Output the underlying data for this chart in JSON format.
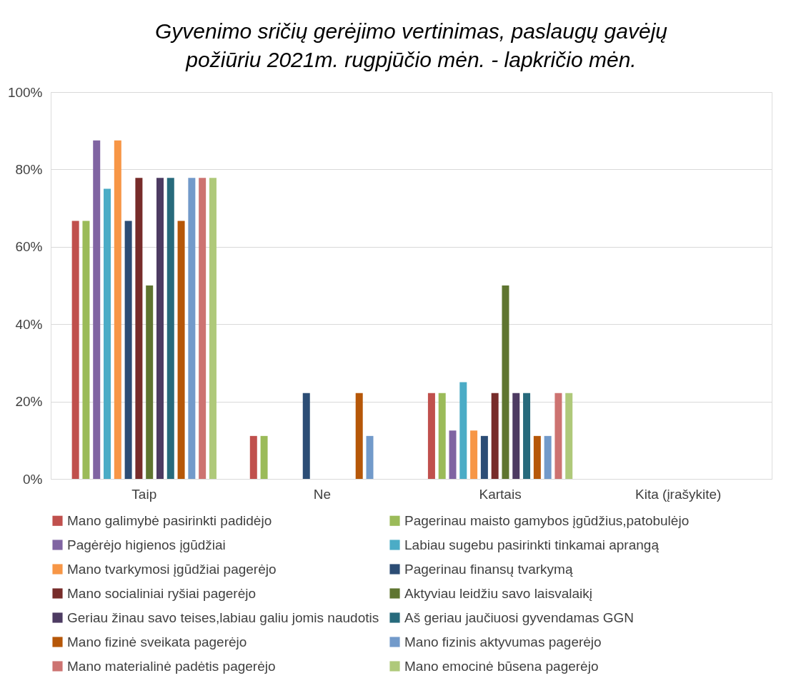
{
  "chart_data": {
    "type": "bar",
    "title": "Gyvenimo sričių gerėjimo vertinimas, paslaugų gavėjų požiūriu 2021m. rugpjūčio mėn. - lapkričio mėn.",
    "categories": [
      "Taip",
      "Ne",
      "Kartais",
      "Kita (įrašykite)"
    ],
    "series": [
      {
        "name": "Mano galimybė pasirinkti padidėjo",
        "color": "#c0504d",
        "values": [
          66.7,
          11.1,
          22.2,
          0
        ]
      },
      {
        "name": "Pagerinau maisto gamybos įgūdžius,patobulėjo",
        "color": "#9bbb59",
        "values": [
          66.7,
          11.1,
          22.2,
          0
        ]
      },
      {
        "name": "Pagėrėjo higienos įgūdžiai",
        "color": "#8064a2",
        "values": [
          87.5,
          0,
          12.5,
          0
        ]
      },
      {
        "name": "Labiau sugebu pasirinkti tinkamai aprangą",
        "color": "#4bacc6",
        "values": [
          75,
          0,
          25,
          0
        ]
      },
      {
        "name": "Mano tvarkymosi įgūdžiai pagerėjo",
        "color": "#f79646",
        "values": [
          87.5,
          0,
          12.5,
          0
        ]
      },
      {
        "name": "Pagerinau finansų tvarkymą",
        "color": "#2c4d75",
        "values": [
          66.7,
          22.2,
          11.1,
          0
        ]
      },
      {
        "name": "Mano socialiniai ryšiai pagerėjo",
        "color": "#772c2a",
        "values": [
          77.8,
          0,
          22.2,
          0
        ]
      },
      {
        "name": "Aktyviau leidžiu savo laisvalaikį",
        "color": "#5f7530",
        "values": [
          50,
          0,
          50,
          0
        ]
      },
      {
        "name": "Geriau žinau savo teises,labiau galiu jomis naudotis",
        "color": "#4d3b62",
        "values": [
          77.8,
          0,
          22.2,
          0
        ]
      },
      {
        "name": "Aš geriau jaučiuosi gyvendamas GGN",
        "color": "#276a7c",
        "values": [
          77.8,
          0,
          22.2,
          0
        ]
      },
      {
        "name": "Mano fizinė sveikata pagerėjo",
        "color": "#b65708",
        "values": [
          66.7,
          22.2,
          11.1,
          0
        ]
      },
      {
        "name": "Mano fizinis aktyvumas pagerėjo",
        "color": "#729aca",
        "values": [
          77.8,
          11.1,
          11.1,
          0
        ]
      },
      {
        "name": "Mano materialinė padėtis pagerėjo",
        "color": "#cd7371",
        "values": [
          77.8,
          0,
          22.2,
          0
        ]
      },
      {
        "name": "Mano emocinė būsena pagerėjo",
        "color": "#afc97a",
        "values": [
          77.8,
          0,
          22.2,
          0
        ]
      }
    ],
    "ylim": [
      0,
      100
    ],
    "yticks": [
      {
        "value": 0,
        "label": "0%"
      },
      {
        "value": 20,
        "label": "20%"
      },
      {
        "value": 40,
        "label": "40%"
      },
      {
        "value": 60,
        "label": "60%"
      },
      {
        "value": 80,
        "label": "80%"
      },
      {
        "value": 100,
        "label": "100%"
      }
    ],
    "grid": "y",
    "legend": "bottom"
  }
}
